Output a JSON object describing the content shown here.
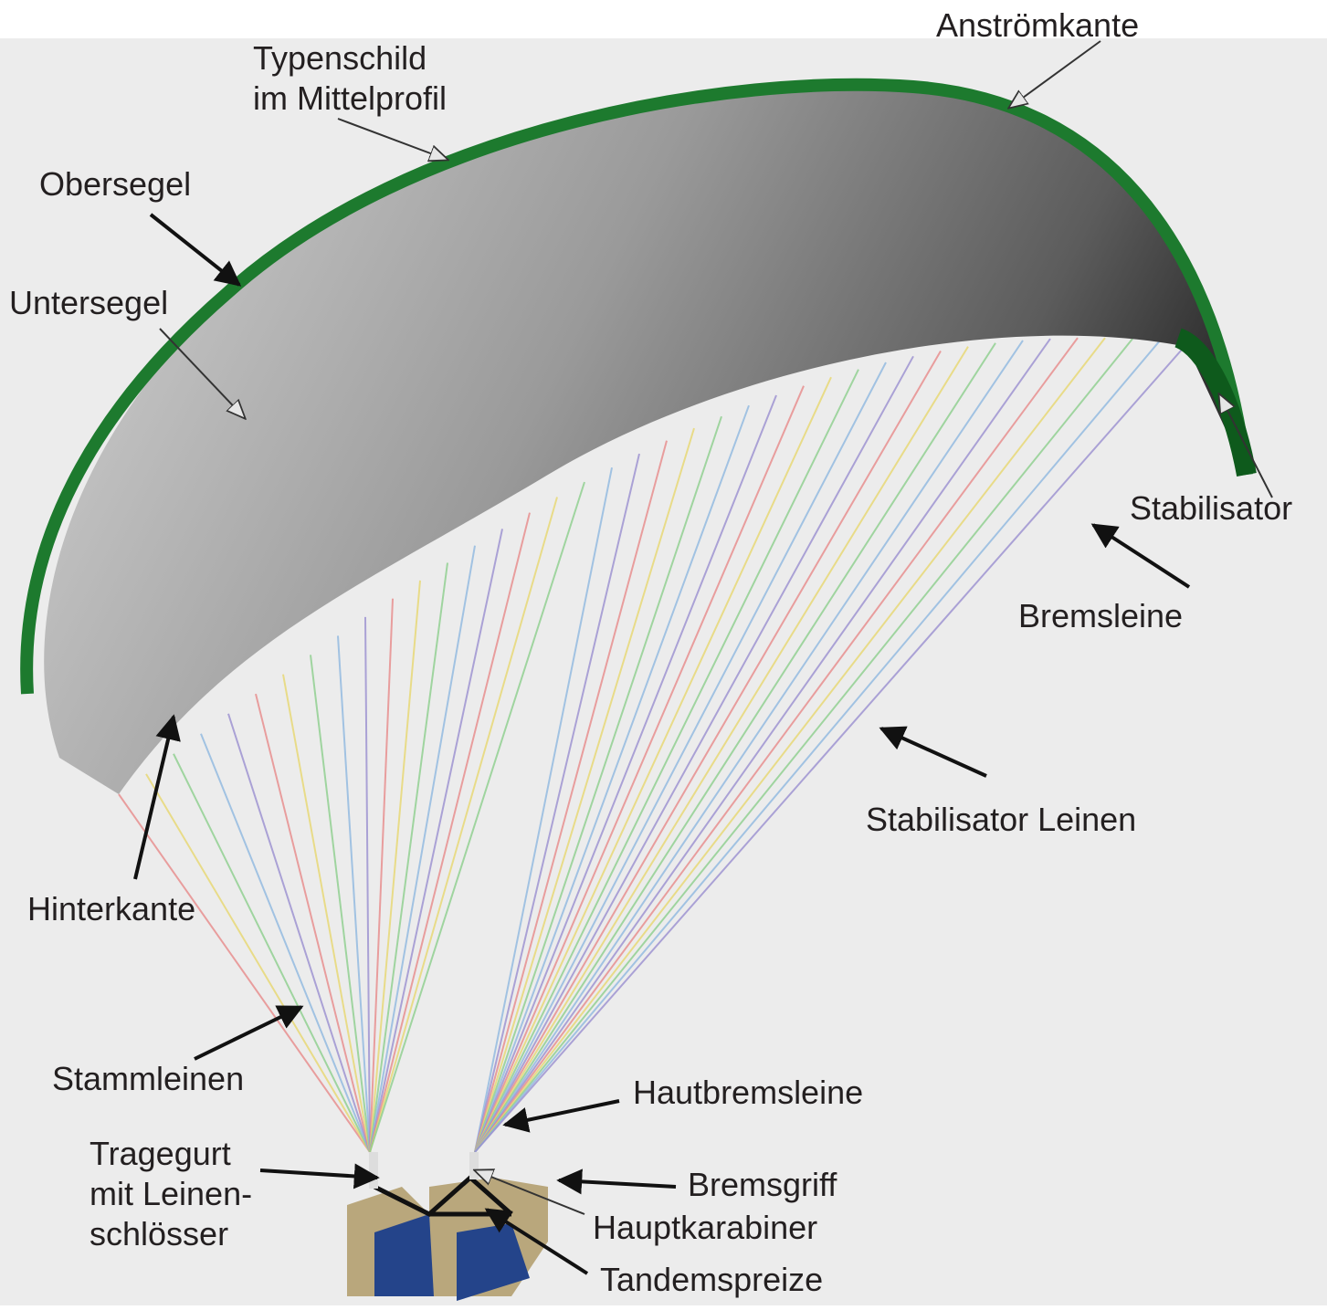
{
  "labels": [
    {
      "lines": [
        "Anströmkante"
      ]
    },
    {
      "lines": [
        "Typenschild",
        "im Mittelprofil"
      ]
    },
    {
      "lines": [
        "Obersegel"
      ]
    },
    {
      "lines": [
        "Untersegel"
      ]
    },
    {
      "lines": [
        "Stabilisator"
      ]
    },
    {
      "lines": [
        "Bremsleine"
      ]
    },
    {
      "lines": [
        "Stabilisator Leinen"
      ]
    },
    {
      "lines": [
        "Hinterkante"
      ]
    },
    {
      "lines": [
        "Stammleinen"
      ]
    },
    {
      "lines": [
        "Hautbremsleine"
      ]
    },
    {
      "lines": [
        "Tragegurt",
        "mit Leinen-",
        "schlösser"
      ]
    },
    {
      "lines": [
        "Bremsgriff"
      ]
    },
    {
      "lines": [
        "Hauptkarabiner"
      ]
    },
    {
      "lines": [
        "Tandemspreize"
      ]
    }
  ]
}
